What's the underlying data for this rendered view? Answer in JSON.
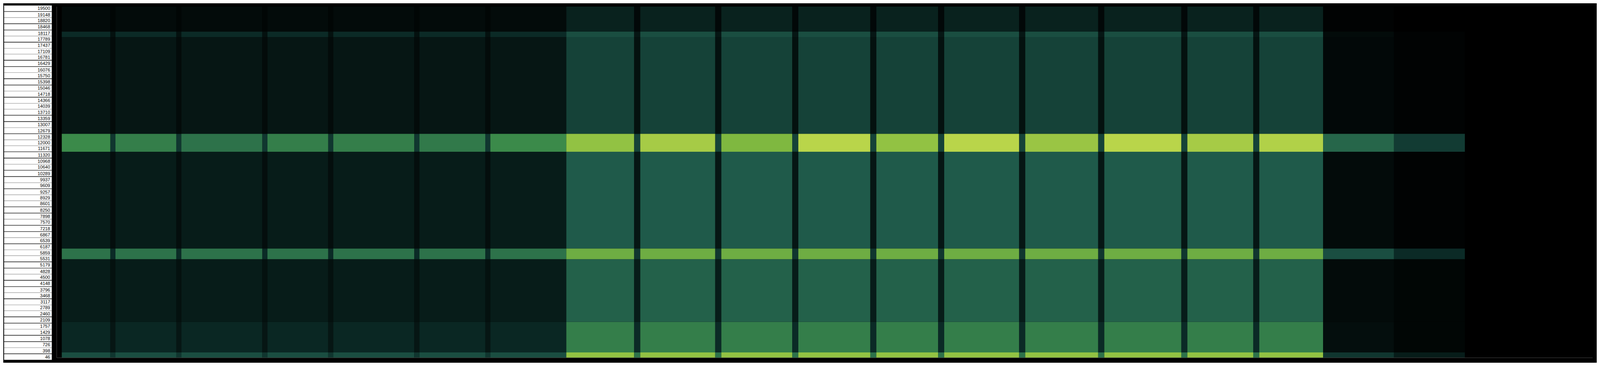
{
  "chart_data": {
    "type": "heatmap",
    "x_bins": [
      0,
      5,
      53,
      58,
      118,
      123,
      203,
      208,
      268,
      273,
      353,
      358,
      423,
      428,
      503,
      570,
      576,
      650,
      656,
      726,
      732,
      803,
      809,
      870,
      876,
      950,
      956,
      1028,
      1034,
      1110,
      1116,
      1181,
      1187,
      1250,
      1320,
      1390,
      1516
    ],
    "y_bins": [
      0,
      300,
      2000,
      5500,
      6100,
      11500,
      12500,
      17900,
      18200,
      19600
    ],
    "z": [
      [
        0,
        0.3,
        0.2,
        0.3,
        0.2,
        0.3,
        0.2,
        0.3,
        0.2,
        0.3,
        0.2,
        0.3,
        0.2,
        0.3,
        0.8,
        0.45,
        0.8,
        0.45,
        0.8,
        0.45,
        0.8,
        0.45,
        0.8,
        0.45,
        0.8,
        0.45,
        0.8,
        0.45,
        0.8,
        0.45,
        0.8,
        0.45,
        0.8,
        0.2,
        0.1,
        0
      ],
      [
        0,
        0.14,
        0.08,
        0.14,
        0.08,
        0.14,
        0.08,
        0.14,
        0.08,
        0.14,
        0.08,
        0.14,
        0.08,
        0.14,
        0.5,
        0.15,
        0.5,
        0.15,
        0.5,
        0.15,
        0.5,
        0.15,
        0.5,
        0.15,
        0.5,
        0.15,
        0.5,
        0.15,
        0.5,
        0.15,
        0.5,
        0.15,
        0.5,
        0.05,
        0.02,
        0
      ],
      [
        0,
        0.1,
        0.06,
        0.1,
        0.06,
        0.1,
        0.06,
        0.1,
        0.06,
        0.1,
        0.06,
        0.1,
        0.06,
        0.1,
        0.38,
        0.1,
        0.38,
        0.1,
        0.38,
        0.1,
        0.38,
        0.1,
        0.38,
        0.1,
        0.38,
        0.1,
        0.38,
        0.1,
        0.38,
        0.1,
        0.38,
        0.1,
        0.38,
        0.04,
        0.02,
        0
      ],
      [
        0,
        0.45,
        0.15,
        0.45,
        0.15,
        0.45,
        0.15,
        0.45,
        0.15,
        0.45,
        0.15,
        0.45,
        0.15,
        0.45,
        0.7,
        0.2,
        0.7,
        0.2,
        0.7,
        0.2,
        0.7,
        0.2,
        0.7,
        0.2,
        0.7,
        0.2,
        0.7,
        0.2,
        0.7,
        0.2,
        0.7,
        0.2,
        0.7,
        0.3,
        0.15,
        0
      ],
      [
        0,
        0.1,
        0.05,
        0.1,
        0.05,
        0.1,
        0.05,
        0.1,
        0.05,
        0.1,
        0.05,
        0.1,
        0.05,
        0.1,
        0.35,
        0.08,
        0.35,
        0.08,
        0.35,
        0.08,
        0.35,
        0.08,
        0.35,
        0.08,
        0.35,
        0.08,
        0.35,
        0.08,
        0.35,
        0.08,
        0.35,
        0.08,
        0.35,
        0.04,
        0.01,
        0
      ],
      [
        0,
        0.55,
        0.2,
        0.5,
        0.2,
        0.45,
        0.2,
        0.5,
        0.2,
        0.5,
        0.2,
        0.48,
        0.2,
        0.55,
        0.8,
        0.25,
        0.85,
        0.25,
        0.75,
        0.25,
        0.9,
        0.25,
        0.8,
        0.25,
        0.9,
        0.25,
        0.82,
        0.25,
        0.9,
        0.25,
        0.85,
        0.25,
        0.88,
        0.4,
        0.22,
        0
      ],
      [
        0,
        0.08,
        0.04,
        0.08,
        0.04,
        0.08,
        0.04,
        0.08,
        0.04,
        0.08,
        0.04,
        0.08,
        0.04,
        0.08,
        0.25,
        0.06,
        0.25,
        0.06,
        0.25,
        0.06,
        0.25,
        0.06,
        0.25,
        0.06,
        0.25,
        0.06,
        0.25,
        0.06,
        0.25,
        0.06,
        0.25,
        0.06,
        0.25,
        0.03,
        0.01,
        0
      ],
      [
        0,
        0.15,
        0.06,
        0.15,
        0.06,
        0.15,
        0.06,
        0.15,
        0.06,
        0.15,
        0.06,
        0.15,
        0.06,
        0.15,
        0.3,
        0.08,
        0.3,
        0.08,
        0.3,
        0.08,
        0.3,
        0.08,
        0.3,
        0.08,
        0.3,
        0.08,
        0.3,
        0.08,
        0.3,
        0.08,
        0.3,
        0.08,
        0.3,
        0.04,
        0.01,
        0
      ],
      [
        0,
        0.04,
        0.02,
        0.04,
        0.02,
        0.04,
        0.02,
        0.04,
        0.02,
        0.04,
        0.02,
        0.04,
        0.02,
        0.04,
        0.12,
        0.03,
        0.12,
        0.03,
        0.12,
        0.03,
        0.12,
        0.03,
        0.12,
        0.03,
        0.12,
        0.03,
        0.12,
        0.03,
        0.12,
        0.03,
        0.12,
        0.03,
        0.12,
        0.01,
        0,
        0
      ]
    ],
    "xlim": [
      0,
      1516
    ],
    "ylim": [
      0,
      19600
    ],
    "yticks": [
      19500,
      19148,
      18820,
      18468,
      18117,
      17789,
      17437,
      17109,
      16781,
      16429,
      16076,
      15750,
      15398,
      15046,
      14718,
      14366,
      14039,
      13710,
      13359,
      13007,
      12679,
      12328,
      12000,
      11671,
      11320,
      10968,
      10640,
      10289,
      9937,
      9609,
      9257,
      8929,
      8601,
      8250,
      7898,
      7570,
      7218,
      6867,
      6539,
      6187,
      5859,
      5531,
      5179,
      4828,
      4500,
      4148,
      3796,
      3468,
      3117,
      2789,
      2460,
      2109,
      1757,
      1429,
      1078,
      726,
      398,
      46
    ],
    "tick_labels": "y",
    "color_range": [
      0,
      1
    ],
    "grid": false
  }
}
